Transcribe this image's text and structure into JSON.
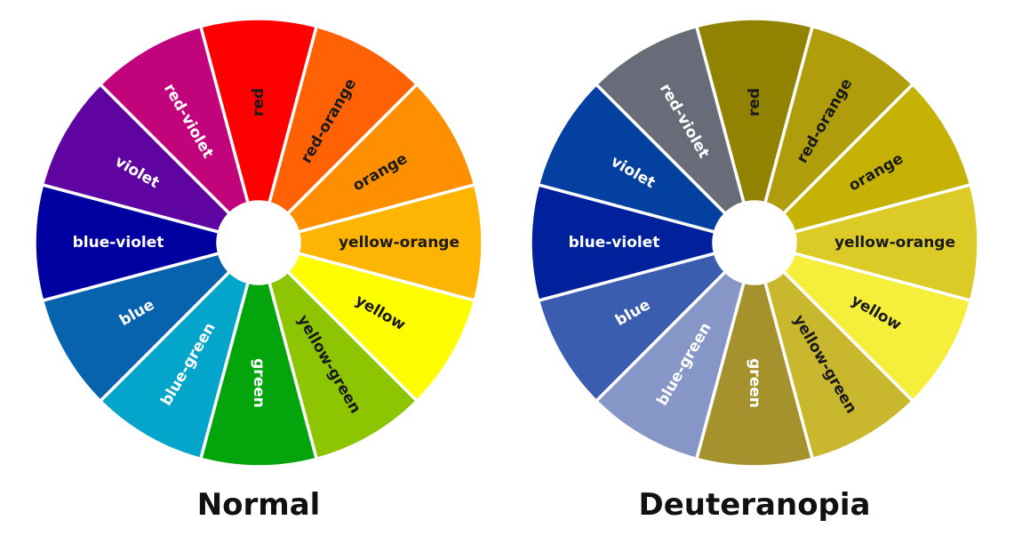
{
  "wheels": [
    {
      "caption": "Normal",
      "segments": [
        {
          "label": "red",
          "color": "#fe0000",
          "text_color": "#1a1a1a"
        },
        {
          "label": "red-orange",
          "color": "#ff6205",
          "text_color": "#1a1a1a"
        },
        {
          "label": "orange",
          "color": "#fe9000",
          "text_color": "#1a1a1a"
        },
        {
          "label": "yellow-orange",
          "color": "#fdb402",
          "text_color": "#1a1a1a"
        },
        {
          "label": "yellow",
          "color": "#fefe00",
          "text_color": "#1a1a1a"
        },
        {
          "label": "yellow-green",
          "color": "#8dc502",
          "text_color": "#1a1a1a"
        },
        {
          "label": "green",
          "color": "#04a40c",
          "text_color": "#ffffff"
        },
        {
          "label": "blue-green",
          "color": "#04a5cb",
          "text_color": "#ffffff"
        },
        {
          "label": "blue",
          "color": "#0763ae",
          "text_color": "#ffffff"
        },
        {
          "label": "blue-violet",
          "color": "#0000a0",
          "text_color": "#ffffff"
        },
        {
          "label": "violet",
          "color": "#6004a1",
          "text_color": "#ffffff"
        },
        {
          "label": "red-violet",
          "color": "#c1037c",
          "text_color": "#ffffff"
        }
      ]
    },
    {
      "caption": "Deuteranopia",
      "segments": [
        {
          "label": "red",
          "color": "#928201",
          "text_color": "#1a1a1a"
        },
        {
          "label": "red-orange",
          "color": "#b09d0b",
          "text_color": "#1a1a1a"
        },
        {
          "label": "orange",
          "color": "#c6b105",
          "text_color": "#1a1a1a"
        },
        {
          "label": "yellow-orange",
          "color": "#dccb27",
          "text_color": "#1a1a1a"
        },
        {
          "label": "yellow",
          "color": "#f5ee3b",
          "text_color": "#1a1a1a"
        },
        {
          "label": "yellow-green",
          "color": "#c9b82e",
          "text_color": "#1a1a1a"
        },
        {
          "label": "green",
          "color": "#a5922c",
          "text_color": "#ffffff"
        },
        {
          "label": "blue-green",
          "color": "#8596c7",
          "text_color": "#ffffff"
        },
        {
          "label": "blue",
          "color": "#3a5daf",
          "text_color": "#ffffff"
        },
        {
          "label": "blue-violet",
          "color": "#00209c",
          "text_color": "#ffffff"
        },
        {
          "label": "violet",
          "color": "#04409f",
          "text_color": "#ffffff"
        },
        {
          "label": "red-violet",
          "color": "#686c79",
          "text_color": "#ffffff"
        }
      ]
    }
  ]
}
